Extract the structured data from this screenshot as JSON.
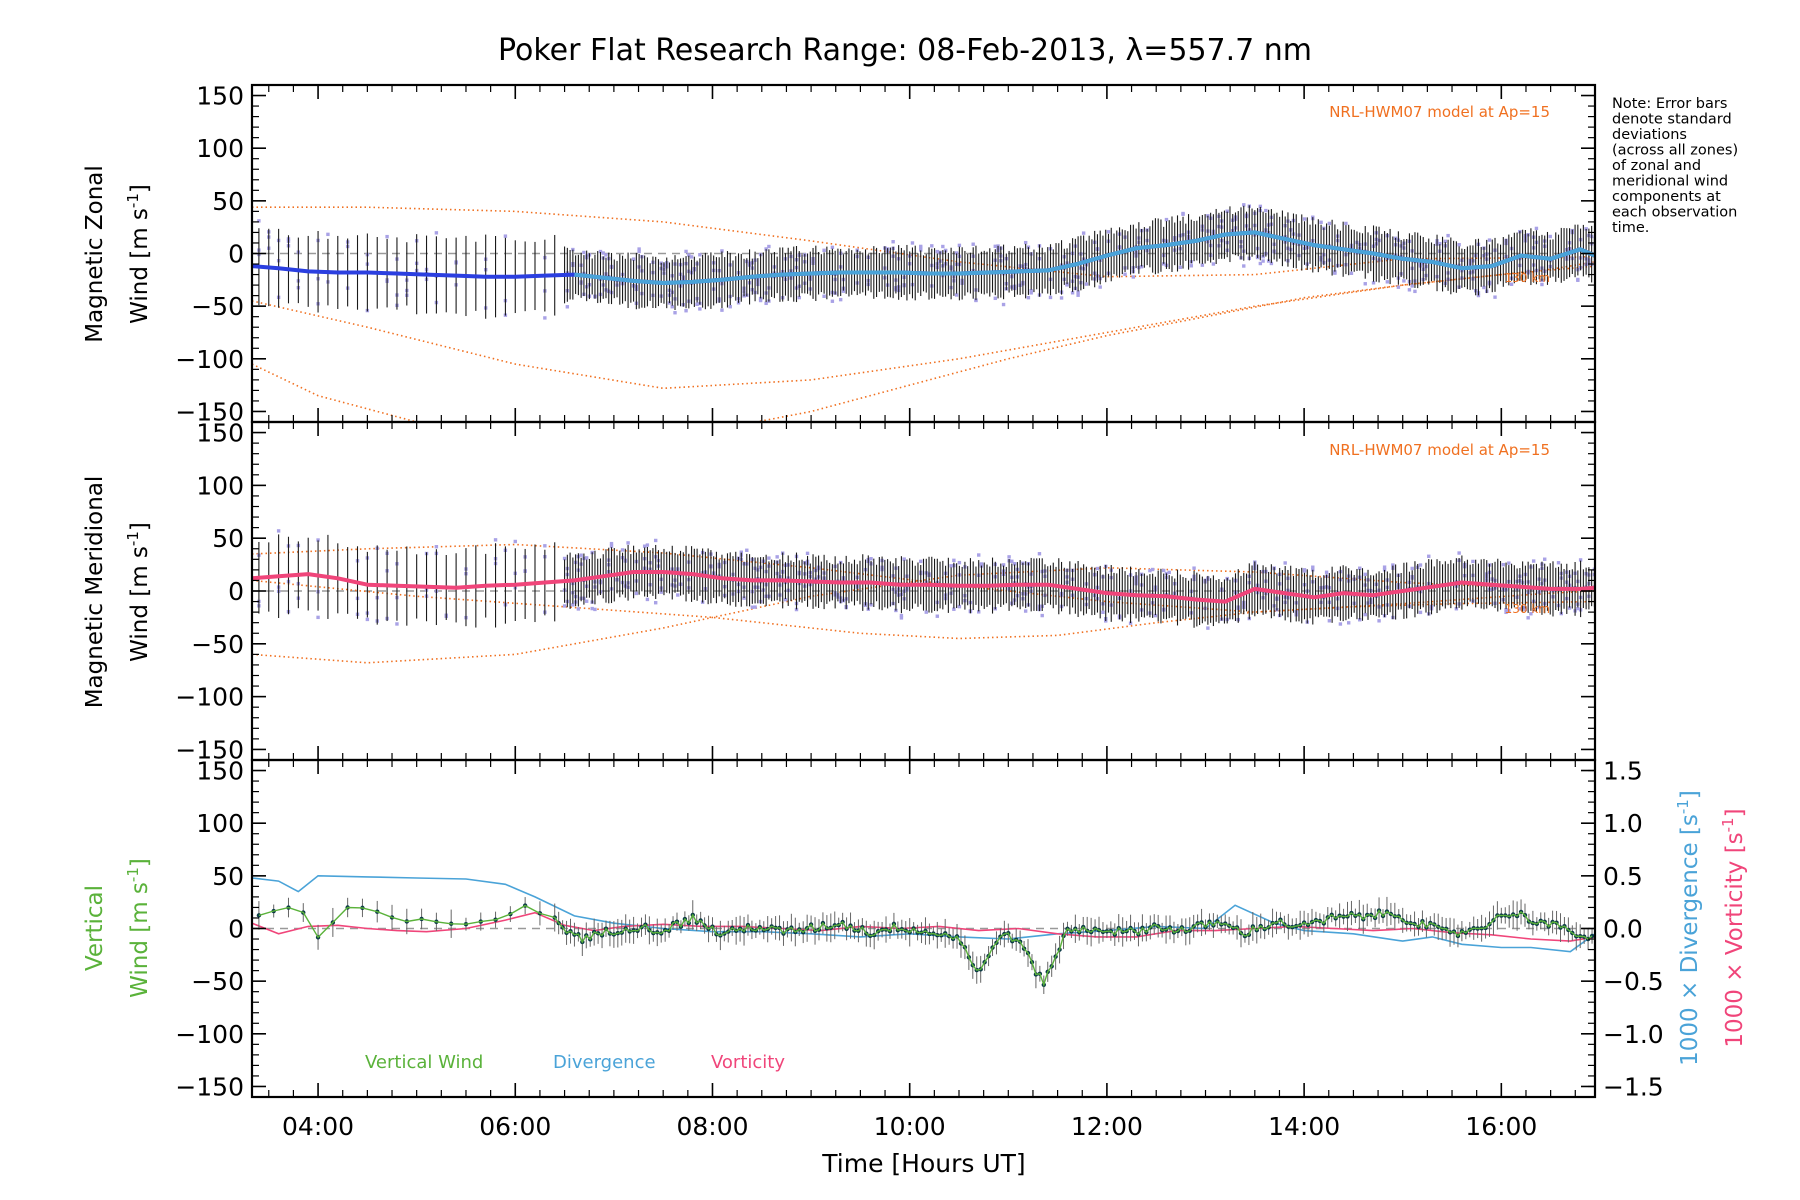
{
  "title": "Poker Flat Research Range: 08-Feb-2013, λ=557.7 nm",
  "note_lines": [
    "Note: Error bars",
    "denote standard",
    "deviations",
    "(across all zones)",
    "of zonal and",
    "meridional wind",
    "components at",
    "each observation",
    "time."
  ],
  "colors": {
    "zonal": "#2b3fe0",
    "meridional": "#f0457a",
    "vertical": "#5ab23a",
    "divergence": "#4aa3d8",
    "vorticity": "#f0457a",
    "model": "#f07020",
    "scatter": "#a9a2e6",
    "errbar": "#1a1a1a",
    "zero": "#999999"
  },
  "chart_data": [
    {
      "type": "line",
      "panel": "zonal",
      "ylabel_line1": "Magnetic Zonal",
      "ylabel_line2": "Wind [m s",
      "ylabel_sup": "-1",
      "ylabel_end": "]",
      "ylim": [
        -160,
        160
      ],
      "yticks": [
        150,
        100,
        50,
        0,
        -50,
        -100,
        -150
      ],
      "ytick_labels": [
        "150",
        "100",
        "50",
        "0",
        "−50",
        "−100",
        "−150"
      ],
      "model_label": "NRL-HWM07 model at Ap=15",
      "model_alt_label": "130 km",
      "series": [
        {
          "name": "Zonal wind",
          "x": [
            3.33,
            3.6,
            3.9,
            4.2,
            4.5,
            4.8,
            5.1,
            5.4,
            5.7,
            6.0,
            6.3,
            6.6,
            6.9,
            7.2,
            7.5,
            7.8,
            8.1,
            8.4,
            8.7,
            9.0,
            9.3,
            9.6,
            9.9,
            10.2,
            10.5,
            10.8,
            11.1,
            11.4,
            11.7,
            12.0,
            12.3,
            12.6,
            12.9,
            13.2,
            13.5,
            13.8,
            14.1,
            14.4,
            14.7,
            15.0,
            15.3,
            15.6,
            15.9,
            16.2,
            16.5,
            16.8,
            16.95
          ],
          "y": [
            -12,
            -14,
            -17,
            -18,
            -18,
            -19,
            -20,
            -21,
            -22,
            -22,
            -21,
            -20,
            -23,
            -26,
            -28,
            -27,
            -25,
            -22,
            -20,
            -19,
            -18,
            -18,
            -18,
            -19,
            -19,
            -18,
            -17,
            -16,
            -10,
            -2,
            5,
            8,
            12,
            18,
            20,
            14,
            8,
            4,
            0,
            -5,
            -8,
            -14,
            -12,
            -2,
            -5,
            4,
            -2
          ]
        }
      ],
      "models": [
        {
          "x": [
            3.33,
            4.5,
            6.0,
            7.5,
            9.0,
            10.5,
            12.0,
            13.5,
            15.0,
            16.5,
            16.95
          ],
          "y": [
            44,
            44,
            40,
            30,
            12,
            -8,
            -22,
            -20,
            -5,
            -4,
            -3
          ]
        },
        {
          "x": [
            3.33,
            4.5,
            6.0,
            7.5,
            9.0,
            10.5,
            12.0,
            13.5,
            15.0,
            16.5,
            16.95
          ],
          "y": [
            -45,
            -70,
            -105,
            -128,
            -120,
            -100,
            -75,
            -50,
            -30,
            -15,
            -8
          ]
        },
        {
          "x": [
            3.33,
            4.0,
            5.0,
            6.0,
            7.0,
            8.0,
            9.0,
            10.0,
            11.0,
            12.0,
            13.0,
            14.0,
            15.0,
            16.0,
            16.95
          ],
          "y": [
            -105,
            -135,
            -160,
            -178,
            -180,
            -168,
            -150,
            -125,
            -100,
            -78,
            -60,
            -42,
            -30,
            -20,
            -12
          ]
        }
      ]
    },
    {
      "type": "line",
      "panel": "meridional",
      "ylabel_line1": "Magnetic Meridional",
      "ylabel_line2": "Wind [m s",
      "ylabel_sup": "-1",
      "ylabel_end": "]",
      "ylim": [
        -160,
        160
      ],
      "yticks": [
        150,
        100,
        50,
        0,
        -50,
        -100,
        -150
      ],
      "ytick_labels": [
        "150",
        "100",
        "50",
        "0",
        "−50",
        "−100",
        "−150"
      ],
      "model_label": "NRL-HWM07 model at Ap=15",
      "model_alt_label": "130 km",
      "series": [
        {
          "name": "Meridional wind",
          "x": [
            3.33,
            3.6,
            3.9,
            4.2,
            4.5,
            4.8,
            5.1,
            5.4,
            5.7,
            6.0,
            6.3,
            6.6,
            6.9,
            7.2,
            7.5,
            7.8,
            8.1,
            8.4,
            8.7,
            9.0,
            9.3,
            9.6,
            9.9,
            10.2,
            10.5,
            10.8,
            11.1,
            11.4,
            11.7,
            12.0,
            12.3,
            12.6,
            12.9,
            13.2,
            13.5,
            13.8,
            14.1,
            14.4,
            14.7,
            15.0,
            15.3,
            15.6,
            15.9,
            16.2,
            16.5,
            16.8,
            16.95
          ],
          "y": [
            12,
            14,
            16,
            12,
            6,
            5,
            4,
            3,
            5,
            6,
            8,
            10,
            14,
            18,
            18,
            16,
            12,
            10,
            10,
            9,
            8,
            8,
            6,
            6,
            5,
            5,
            6,
            6,
            2,
            -2,
            -4,
            -5,
            -8,
            -10,
            2,
            -2,
            -6,
            -2,
            -4,
            0,
            4,
            8,
            6,
            4,
            2,
            2,
            3
          ]
        }
      ],
      "models": [
        {
          "x": [
            3.33,
            4.5,
            6.0,
            7.5,
            9.0,
            10.5,
            12.0,
            13.5,
            15.0,
            16.5,
            16.95
          ],
          "y": [
            35,
            40,
            44,
            36,
            22,
            5,
            -10,
            -20,
            -12,
            -2,
            0
          ]
        },
        {
          "x": [
            3.33,
            4.5,
            6.0,
            7.5,
            9.0,
            10.5,
            12.0,
            13.5,
            15.0,
            16.5,
            16.95
          ],
          "y": [
            -60,
            -68,
            -60,
            -35,
            -5,
            15,
            22,
            18,
            8,
            2,
            0
          ]
        },
        {
          "x": [
            3.33,
            5.0,
            6.5,
            8.0,
            9.5,
            10.5,
            11.5,
            12.5,
            13.5,
            14.5,
            15.5,
            16.95
          ],
          "y": [
            10,
            -5,
            -15,
            -25,
            -40,
            -45,
            -42,
            -30,
            -20,
            -15,
            -12,
            -10
          ]
        }
      ]
    },
    {
      "type": "line",
      "panel": "vertical",
      "ylabel_line1": "Vertical",
      "ylabel_line2": "Wind [m s",
      "ylabel_sup": "-1",
      "ylabel_end": "]",
      "ylim": [
        -160,
        160
      ],
      "yticks": [
        150,
        100,
        50,
        0,
        -50,
        -100,
        -150
      ],
      "ytick_labels": [
        "150",
        "100",
        "50",
        "0",
        "−50",
        "−100",
        "−150"
      ],
      "y2lim": [
        -1.6,
        1.6
      ],
      "y2ticks": [
        1.5,
        1.0,
        0.5,
        0.0,
        -0.5,
        -1.0,
        -1.5
      ],
      "y2tick_labels": [
        "1.5",
        "1.0",
        "0.5",
        "0.0",
        "−0.5",
        "−1.0",
        "−1.5"
      ],
      "y2label_div": "1000 × Divergence [s",
      "y2label_vort": "1000 × Vorticity [s",
      "y2label_sup": "-1",
      "y2label_end": "]",
      "legend": [
        "Vertical Wind",
        "Divergence",
        "Vorticity"
      ],
      "series": [
        {
          "name": "Vertical Wind",
          "x": [
            3.33,
            3.5,
            3.7,
            3.9,
            4.0,
            4.3,
            4.7,
            5.0,
            5.4,
            5.8,
            6.1,
            6.3,
            6.5,
            6.7,
            6.9,
            7.2,
            7.5,
            7.8,
            8.1,
            8.4,
            8.7,
            9.0,
            9.3,
            9.6,
            9.9,
            10.2,
            10.5,
            10.7,
            10.9,
            11.1,
            11.35,
            11.6,
            11.9,
            12.2,
            12.5,
            12.8,
            13.1,
            13.4,
            13.7,
            14.0,
            14.3,
            14.6,
            14.9,
            15.2,
            15.5,
            15.8,
            16.1,
            16.4,
            16.7,
            16.95
          ],
          "y": [
            10,
            15,
            20,
            12,
            -8,
            18,
            12,
            6,
            2,
            10,
            22,
            14,
            0,
            -10,
            -4,
            2,
            -2,
            10,
            -6,
            2,
            -3,
            0,
            5,
            -4,
            2,
            -4,
            -8,
            -45,
            -6,
            -10,
            -52,
            -2,
            0,
            -4,
            2,
            -2,
            6,
            -4,
            6,
            2,
            10,
            12,
            14,
            4,
            -6,
            2,
            16,
            6,
            -2,
            -12
          ]
        },
        {
          "name": "Divergence",
          "x": [
            3.33,
            3.6,
            3.8,
            4.0,
            4.5,
            5.0,
            5.5,
            5.9,
            6.2,
            6.6,
            7.0,
            7.5,
            8.0,
            8.5,
            9.0,
            9.5,
            10.0,
            10.5,
            11.0,
            11.5,
            12.0,
            12.5,
            13.0,
            13.3,
            13.7,
            14.0,
            14.5,
            15.0,
            15.3,
            15.6,
            16.0,
            16.3,
            16.7,
            16.95
          ],
          "y": [
            0.48,
            0.45,
            0.35,
            0.5,
            0.49,
            0.48,
            0.47,
            0.42,
            0.3,
            0.12,
            0.05,
            0.0,
            -0.03,
            -0.03,
            -0.05,
            -0.08,
            -0.05,
            -0.08,
            -0.1,
            -0.05,
            -0.02,
            0.02,
            0.0,
            0.22,
            0.05,
            -0.02,
            -0.05,
            -0.12,
            -0.08,
            -0.15,
            -0.18,
            -0.18,
            -0.22,
            -0.05
          ]
        },
        {
          "name": "Vorticity",
          "x": [
            3.33,
            3.6,
            3.9,
            4.2,
            4.5,
            4.8,
            5.1,
            5.5,
            5.9,
            6.2,
            6.5,
            6.8,
            7.1,
            7.5,
            7.9,
            8.3,
            8.7,
            9.1,
            9.5,
            9.9,
            10.3,
            10.7,
            11.1,
            11.5,
            11.9,
            12.3,
            12.7,
            13.1,
            13.5,
            13.9,
            14.3,
            14.7,
            15.1,
            15.5,
            15.9,
            16.3,
            16.7,
            16.95
          ],
          "y": [
            0.05,
            -0.05,
            0.02,
            0.03,
            0.0,
            -0.02,
            -0.03,
            0.0,
            0.08,
            0.15,
            0.03,
            -0.02,
            0.02,
            0.04,
            0.02,
            0.02,
            0.0,
            -0.02,
            0.02,
            0.0,
            0.02,
            -0.02,
            0.0,
            -0.05,
            -0.08,
            -0.08,
            -0.02,
            -0.02,
            0.0,
            0.02,
            0.0,
            -0.02,
            0.0,
            -0.04,
            -0.06,
            -0.1,
            -0.12,
            -0.08
          ]
        }
      ]
    }
  ],
  "xaxis": {
    "label": "Time [Hours UT]",
    "xlim": [
      3.33,
      16.95
    ],
    "ticks": [
      4,
      6,
      8,
      10,
      12,
      14,
      16
    ],
    "tick_labels": [
      "04:00",
      "06:00",
      "08:00",
      "10:00",
      "12:00",
      "14:00",
      "16:00"
    ]
  }
}
